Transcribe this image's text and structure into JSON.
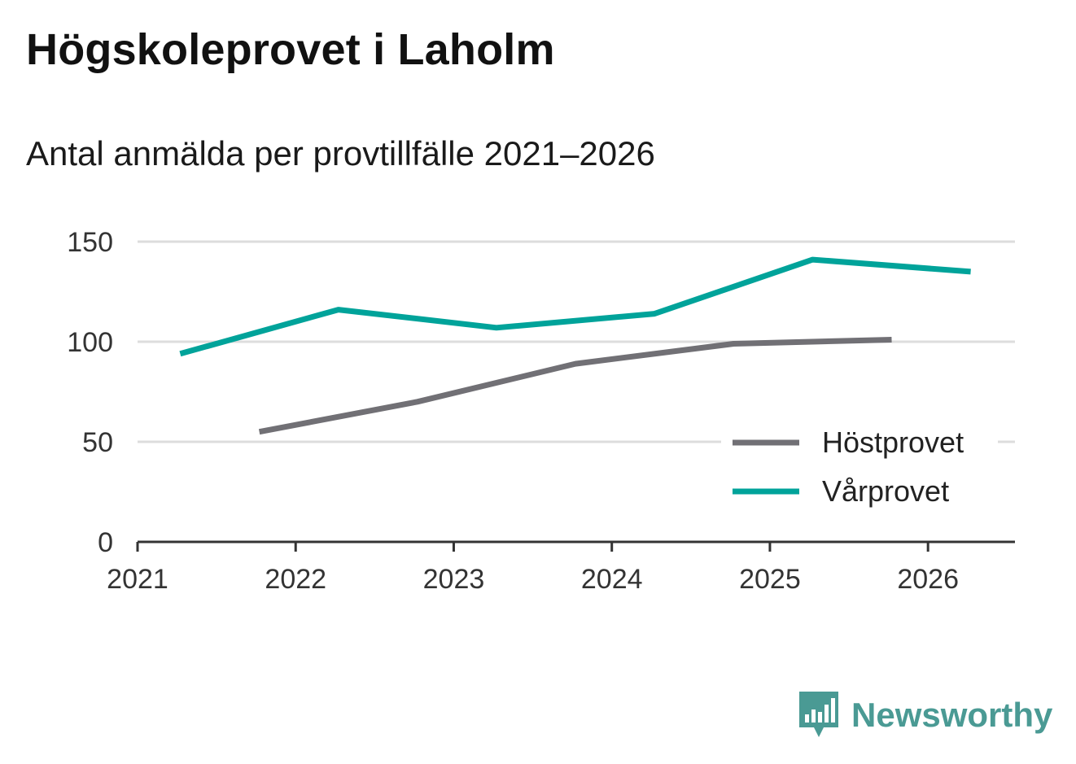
{
  "title": "Högskoleprovet i Laholm",
  "subtitle": "Antal anmälda per provtillfälle 2021–2026",
  "brand": {
    "name": "Newsworthy",
    "icon": "newsworthy-logo-icon"
  },
  "colors": {
    "hostprovet": "#717075",
    "varprovet": "#00a39a",
    "grid": "#dddddd",
    "axis": "#333333"
  },
  "chart_data": {
    "type": "line",
    "title": "Högskoleprovet i Laholm",
    "subtitle": "Antal anmälda per provtillfälle 2021–2026",
    "xlabel": "",
    "ylabel": "",
    "x_ticks": [
      "2021",
      "2022",
      "2023",
      "2024",
      "2025",
      "2026"
    ],
    "xlim": [
      2021,
      2026.55
    ],
    "y_ticks": [
      "0",
      "50",
      "100",
      "150"
    ],
    "ylim": [
      0,
      150
    ],
    "grid": true,
    "legend_position": "bottom-right",
    "series": [
      {
        "name": "Höstprovet",
        "color": "#717075",
        "x": [
          2021.77,
          2022.77,
          2023.77,
          2024.77,
          2025.77
        ],
        "y": [
          55,
          70,
          89,
          99,
          101
        ]
      },
      {
        "name": "Vårprovet",
        "color": "#00a39a",
        "x": [
          2021.27,
          2022.27,
          2023.27,
          2024.27,
          2025.27,
          2026.27
        ],
        "y": [
          94,
          116,
          107,
          114,
          141,
          135
        ]
      }
    ]
  }
}
